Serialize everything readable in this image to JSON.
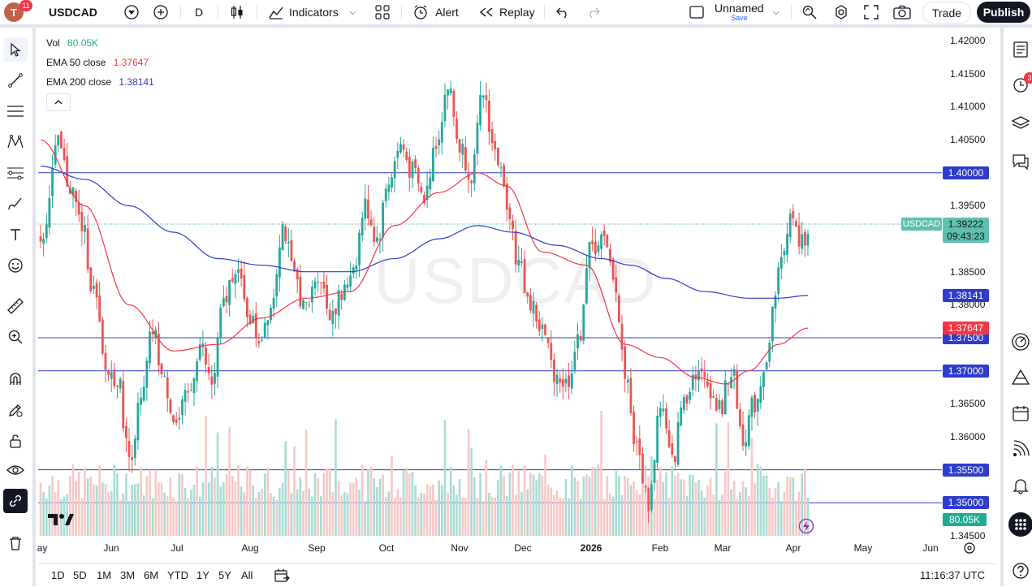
{
  "header": {
    "avatar_letter": "T",
    "avatar_badge": "11",
    "symbol": "USDCAD",
    "interval": "D",
    "indicators_label": "Indicators",
    "alert_label": "Alert",
    "replay_label": "Replay",
    "layout_name": "Unnamed",
    "layout_save": "Save",
    "trade_label": "Trade",
    "publish_label": "Publish"
  },
  "legend": {
    "vol_label": "Vol",
    "vol_value": "80.05K",
    "ema50_label": "EMA 50 close",
    "ema50_value": "1.37647",
    "ema200_label": "EMA 200 close",
    "ema200_value": "1.38141"
  },
  "watermark": "USDCAD",
  "price_axis": {
    "ticks": [
      "1.42000",
      "1.41500",
      "1.41000",
      "1.40500",
      "1.39500",
      "1.38500",
      "1.38000",
      "1.36500",
      "1.36000",
      "1.34500"
    ],
    "tick_values": [
      1.42,
      1.415,
      1.41,
      1.405,
      1.395,
      1.385,
      1.38,
      1.365,
      1.36,
      1.345
    ],
    "hlines": [
      {
        "label": "1.40000",
        "value": 1.4
      },
      {
        "label": "1.37500",
        "value": 1.375
      },
      {
        "label": "1.37000",
        "value": 1.37
      },
      {
        "label": "1.35500",
        "value": 1.355
      },
      {
        "label": "1.35000",
        "value": 1.35
      }
    ],
    "last_symbol": "USDCAD",
    "last_price": "1.39222",
    "last_value": 1.39222,
    "countdown": "09:43:23",
    "ema50_box": "1.37647",
    "ema200_box": "1.38141",
    "vol_box": "80.05K"
  },
  "time_axis": {
    "labels": [
      "ay",
      "Jun",
      "Jul",
      "Aug",
      "Sep",
      "Oct",
      "Nov",
      "Dec",
      "2026",
      "Feb",
      "Mar",
      "Apr",
      "May",
      "Jun"
    ]
  },
  "bottom": {
    "ranges": [
      "1D",
      "5D",
      "1M",
      "3M",
      "6M",
      "YTD",
      "1Y",
      "5Y",
      "All"
    ],
    "clock": "11:16:37 UTC"
  },
  "right_badges": {
    "alerts_count": "3"
  },
  "colors": {
    "up": "#26a69a",
    "down": "#ef5350",
    "ema50": "#f23645",
    "ema200": "#2e3cc9",
    "hline": "#2e3cc9",
    "pricebox_blue": "#2e3cc9",
    "last_price_bg": "#5fbfb0",
    "vol_up": "#a8dcd4",
    "vol_down": "#f8c7c6"
  },
  "chart_data": {
    "type": "candlestick",
    "symbol": "USDCAD",
    "interval": "D",
    "ylim": [
      1.3445,
      1.4215
    ],
    "anchors": [
      [
        0,
        1.39
      ],
      [
        6,
        1.404
      ],
      [
        10,
        1.398
      ],
      [
        14,
        1.392
      ],
      [
        18,
        1.382
      ],
      [
        22,
        1.37
      ],
      [
        26,
        1.369
      ],
      [
        30,
        1.357
      ],
      [
        34,
        1.365
      ],
      [
        38,
        1.376
      ],
      [
        42,
        1.368
      ],
      [
        46,
        1.362
      ],
      [
        50,
        1.366
      ],
      [
        54,
        1.374
      ],
      [
        58,
        1.368
      ],
      [
        62,
        1.38
      ],
      [
        66,
        1.386
      ],
      [
        70,
        1.379
      ],
      [
        74,
        1.375
      ],
      [
        78,
        1.38
      ],
      [
        82,
        1.392
      ],
      [
        86,
        1.384
      ],
      [
        90,
        1.379
      ],
      [
        94,
        1.385
      ],
      [
        98,
        1.379
      ],
      [
        102,
        1.381
      ],
      [
        106,
        1.386
      ],
      [
        110,
        1.395
      ],
      [
        114,
        1.39
      ],
      [
        118,
        1.399
      ],
      [
        122,
        1.404
      ],
      [
        126,
        1.4
      ],
      [
        130,
        1.396
      ],
      [
        134,
        1.405
      ],
      [
        138,
        1.413
      ],
      [
        142,
        1.404
      ],
      [
        146,
        1.4
      ],
      [
        150,
        1.412
      ],
      [
        154,
        1.403
      ],
      [
        158,
        1.396
      ],
      [
        162,
        1.386
      ],
      [
        166,
        1.38
      ],
      [
        170,
        1.376
      ],
      [
        174,
        1.37
      ],
      [
        178,
        1.368
      ],
      [
        182,
        1.374
      ],
      [
        186,
        1.388
      ],
      [
        190,
        1.39
      ],
      [
        194,
        1.385
      ],
      [
        198,
        1.37
      ],
      [
        202,
        1.358
      ],
      [
        206,
        1.35
      ],
      [
        210,
        1.365
      ],
      [
        214,
        1.356
      ],
      [
        218,
        1.366
      ],
      [
        222,
        1.37
      ],
      [
        226,
        1.368
      ],
      [
        230,
        1.364
      ],
      [
        234,
        1.37
      ],
      [
        238,
        1.36
      ],
      [
        242,
        1.365
      ],
      [
        246,
        1.372
      ],
      [
        250,
        1.385
      ],
      [
        254,
        1.393
      ],
      [
        258,
        1.389
      ],
      [
        260,
        1.392
      ]
    ],
    "ema50": [
      [
        0,
        1.405
      ],
      [
        15,
        1.395
      ],
      [
        30,
        1.38
      ],
      [
        45,
        1.373
      ],
      [
        60,
        1.374
      ],
      [
        75,
        1.378
      ],
      [
        90,
        1.381
      ],
      [
        105,
        1.382
      ],
      [
        120,
        1.392
      ],
      [
        135,
        1.397
      ],
      [
        148,
        1.4
      ],
      [
        158,
        1.398
      ],
      [
        170,
        1.388
      ],
      [
        185,
        1.386
      ],
      [
        198,
        1.374
      ],
      [
        210,
        1.372
      ],
      [
        222,
        1.369
      ],
      [
        232,
        1.368
      ],
      [
        240,
        1.37
      ],
      [
        250,
        1.374
      ],
      [
        260,
        1.37647
      ]
    ],
    "ema200": [
      [
        0,
        1.401
      ],
      [
        15,
        1.399
      ],
      [
        30,
        1.395
      ],
      [
        45,
        1.391
      ],
      [
        60,
        1.387
      ],
      [
        75,
        1.386
      ],
      [
        90,
        1.385
      ],
      [
        105,
        1.385
      ],
      [
        120,
        1.387
      ],
      [
        135,
        1.39
      ],
      [
        148,
        1.392
      ],
      [
        160,
        1.391
      ],
      [
        175,
        1.389
      ],
      [
        190,
        1.387
      ],
      [
        200,
        1.386
      ],
      [
        212,
        1.384
      ],
      [
        225,
        1.382
      ],
      [
        240,
        1.381
      ],
      [
        250,
        1.381
      ],
      [
        260,
        1.38141
      ]
    ],
    "volume": {
      "typical": 80,
      "max": 160,
      "last": "80.05K"
    }
  }
}
